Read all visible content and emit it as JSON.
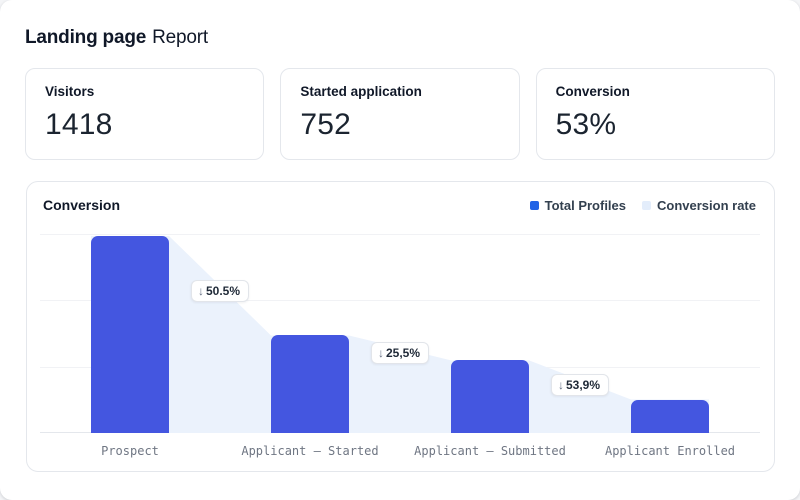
{
  "page": {
    "title_bold": "Landing page",
    "title_regular": "Report"
  },
  "stats": [
    {
      "label": "Visitors",
      "value": "1418"
    },
    {
      "label": "Started application",
      "value": "752"
    },
    {
      "label": "Conversion",
      "value": "53%"
    }
  ],
  "chart": {
    "title": "Conversion",
    "legend": [
      {
        "label": "Total Profiles",
        "color": "#2163e6"
      },
      {
        "label": "Conversion rate",
        "color": "#e3edfb"
      }
    ]
  },
  "chart_data": {
    "type": "bar",
    "subtype": "funnel",
    "title": "Conversion",
    "categories": [
      "Prospect",
      "Applicant – Started",
      "Applicant – Submitted",
      "Applicant Enrolled"
    ],
    "series": [
      {
        "name": "Total Profiles",
        "values": [
          1418,
          702,
          523,
          241
        ],
        "values_estimated_from_pixels": true
      }
    ],
    "drops": [
      {
        "arrow": "↓",
        "value": "50.5%"
      },
      {
        "arrow": "↓",
        "value": "25,5%"
      },
      {
        "arrow": "↓",
        "value": "53,9%"
      }
    ],
    "xlabel": "",
    "ylabel": "",
    "ylim": [
      0,
      1432
    ],
    "yticks_visible": false,
    "grid": true,
    "legend_position": "top-right",
    "bar_color": "#4456e0",
    "area_color": "#ebf2fc"
  },
  "colors": {
    "grid": "#f1f2f5",
    "axis": "#e4e7ec",
    "card_border": "#e4e7ec",
    "text_dark": "#101828",
    "text_gray": "#6f7683"
  }
}
